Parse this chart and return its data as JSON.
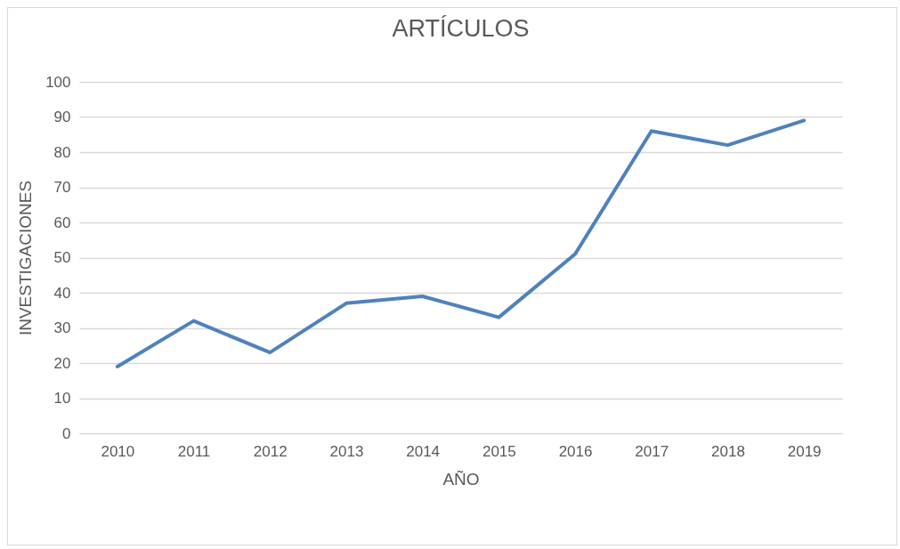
{
  "chart_data": {
    "type": "line",
    "title": "ARTÍCULOS",
    "xlabel": "AÑO",
    "ylabel": "INVESTIGACIONES",
    "categories": [
      "2010",
      "2011",
      "2012",
      "2013",
      "2014",
      "2015",
      "2016",
      "2017",
      "2018",
      "2019"
    ],
    "series": [
      {
        "color": "#4f81bd",
        "values": [
          19,
          32,
          23,
          37,
          39,
          33,
          51,
          86,
          82,
          89
        ]
      }
    ],
    "ylim": [
      0,
      100
    ],
    "yticks": [
      0,
      10,
      20,
      30,
      40,
      50,
      60,
      70,
      80,
      90,
      100
    ],
    "grid": "y",
    "legend": false,
    "marker": "none",
    "line_style": "solid"
  }
}
